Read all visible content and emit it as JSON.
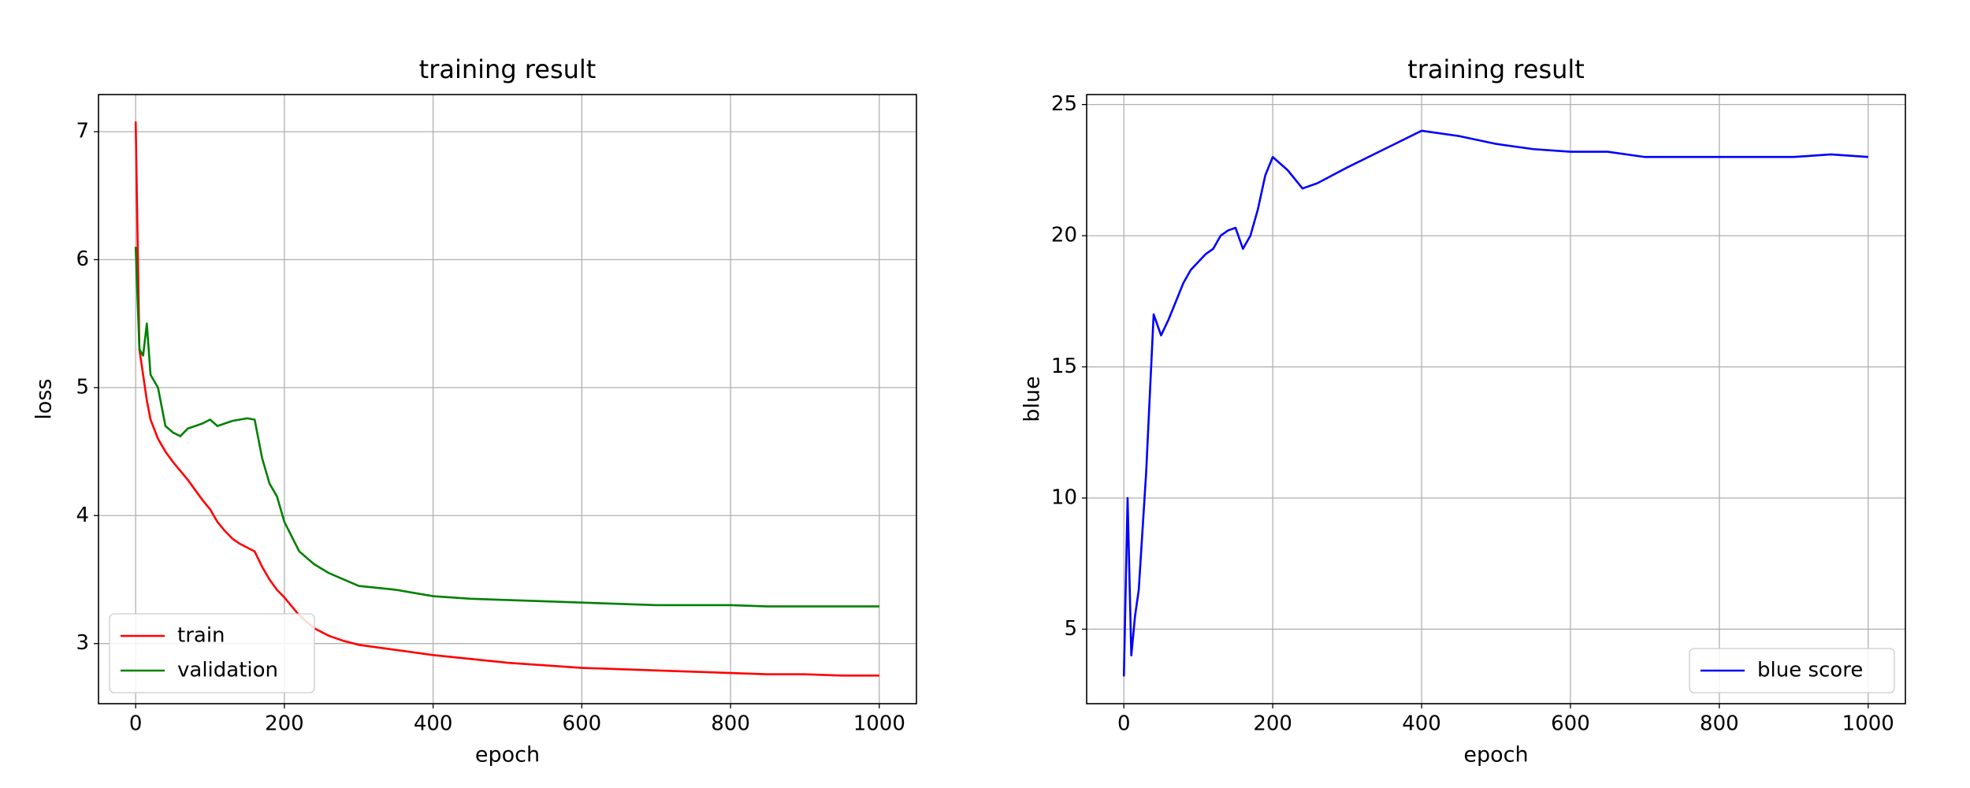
{
  "chart_data": [
    {
      "type": "line",
      "title": "training result",
      "xlabel": "epoch",
      "ylabel": "loss",
      "x": [
        0,
        5,
        10,
        15,
        20,
        30,
        40,
        50,
        60,
        70,
        80,
        90,
        100,
        110,
        120,
        130,
        140,
        150,
        160,
        170,
        180,
        190,
        200,
        220,
        240,
        260,
        280,
        300,
        350,
        400,
        450,
        500,
        550,
        600,
        650,
        700,
        750,
        800,
        850,
        900,
        950,
        1000
      ],
      "series": [
        {
          "name": "train",
          "color": "#ff0000",
          "values": [
            7.08,
            5.3,
            5.1,
            4.9,
            4.75,
            4.6,
            4.5,
            4.42,
            4.35,
            4.28,
            4.2,
            4.12,
            4.05,
            3.95,
            3.88,
            3.82,
            3.78,
            3.75,
            3.72,
            3.6,
            3.5,
            3.42,
            3.36,
            3.22,
            3.12,
            3.06,
            3.02,
            2.99,
            2.95,
            2.91,
            2.88,
            2.85,
            2.83,
            2.81,
            2.8,
            2.79,
            2.78,
            2.77,
            2.76,
            2.76,
            2.75,
            2.75
          ]
        },
        {
          "name": "validation",
          "color": "#008000",
          "values": [
            6.1,
            5.3,
            5.25,
            5.5,
            5.1,
            5.0,
            4.7,
            4.65,
            4.62,
            4.68,
            4.7,
            4.72,
            4.75,
            4.7,
            4.72,
            4.74,
            4.75,
            4.76,
            4.75,
            4.45,
            4.25,
            4.15,
            3.95,
            3.72,
            3.62,
            3.55,
            3.5,
            3.45,
            3.42,
            3.37,
            3.35,
            3.34,
            3.33,
            3.32,
            3.31,
            3.3,
            3.3,
            3.3,
            3.29,
            3.29,
            3.29,
            3.29
          ]
        }
      ],
      "xlim": [
        -50,
        1050
      ],
      "ylim": [
        2.53,
        7.29
      ],
      "xticks": [
        0,
        200,
        400,
        600,
        800,
        1000
      ],
      "yticks": [
        3,
        4,
        5,
        6,
        7
      ],
      "grid": true,
      "legend": "lower left"
    },
    {
      "type": "line",
      "title": "training result",
      "xlabel": "epoch",
      "ylabel": "blue",
      "x": [
        0,
        5,
        10,
        15,
        20,
        30,
        40,
        50,
        60,
        70,
        80,
        90,
        100,
        110,
        120,
        130,
        140,
        150,
        160,
        170,
        180,
        190,
        200,
        220,
        240,
        260,
        280,
        300,
        350,
        400,
        450,
        500,
        550,
        600,
        650,
        700,
        750,
        800,
        850,
        900,
        950,
        1000
      ],
      "series": [
        {
          "name": "blue score",
          "color": "#0000ff",
          "values": [
            3.2,
            10,
            4,
            5.5,
            6.5,
            11,
            17,
            16.2,
            16.8,
            17.5,
            18.2,
            18.7,
            19.0,
            19.3,
            19.5,
            20.0,
            20.2,
            20.3,
            19.5,
            20.0,
            21.0,
            22.3,
            23.0,
            22.5,
            21.8,
            22.0,
            22.3,
            22.6,
            23.3,
            24.0,
            23.8,
            23.5,
            23.3,
            23.2,
            23.2,
            23.0,
            23.0,
            23.0,
            23.0,
            23.0,
            23.1,
            23.0
          ]
        }
      ],
      "xlim": [
        -50,
        1050
      ],
      "ylim": [
        2.16,
        25.38
      ],
      "xticks": [
        0,
        200,
        400,
        600,
        800,
        1000
      ],
      "yticks": [
        5,
        10,
        15,
        20,
        25
      ],
      "grid": true,
      "legend": "lower right"
    }
  ]
}
